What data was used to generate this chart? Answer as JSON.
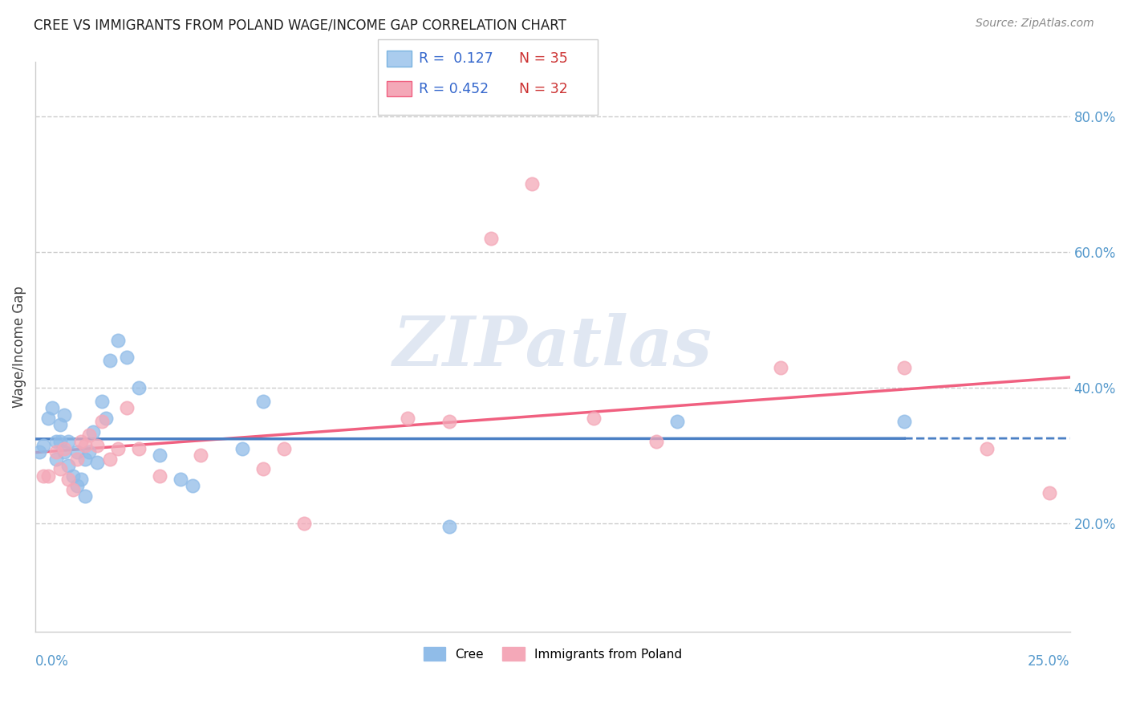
{
  "title": "CREE VS IMMIGRANTS FROM POLAND WAGE/INCOME GAP CORRELATION CHART",
  "source": "Source: ZipAtlas.com",
  "ylabel": "Wage/Income Gap",
  "yticks": [
    0.2,
    0.4,
    0.6,
    0.8
  ],
  "ytick_labels": [
    "20.0%",
    "40.0%",
    "60.0%",
    "80.0%"
  ],
  "xlim": [
    0.0,
    0.25
  ],
  "ylim": [
    0.04,
    0.88
  ],
  "cree_color": "#90bce8",
  "poland_color": "#f4a8b8",
  "cree_line_color": "#4a7fc4",
  "poland_line_color": "#f06080",
  "background_color": "#ffffff",
  "grid_color": "#cccccc",
  "watermark": "ZIPatlas",
  "legend_R_color": "#3366cc",
  "legend_N_color": "#cc3333",
  "tick_color": "#5599cc",
  "cree_x": [
    0.001,
    0.002,
    0.003,
    0.004,
    0.005,
    0.005,
    0.006,
    0.006,
    0.007,
    0.007,
    0.008,
    0.008,
    0.009,
    0.01,
    0.01,
    0.011,
    0.012,
    0.012,
    0.013,
    0.014,
    0.015,
    0.016,
    0.017,
    0.018,
    0.02,
    0.022,
    0.025,
    0.03,
    0.035,
    0.038,
    0.05,
    0.055,
    0.1,
    0.155,
    0.21
  ],
  "cree_y": [
    0.305,
    0.315,
    0.355,
    0.37,
    0.32,
    0.295,
    0.345,
    0.32,
    0.36,
    0.305,
    0.32,
    0.285,
    0.27,
    0.305,
    0.255,
    0.265,
    0.24,
    0.295,
    0.305,
    0.335,
    0.29,
    0.38,
    0.355,
    0.44,
    0.47,
    0.445,
    0.4,
    0.3,
    0.265,
    0.255,
    0.31,
    0.38,
    0.195,
    0.35,
    0.35
  ],
  "poland_x": [
    0.002,
    0.003,
    0.005,
    0.006,
    0.007,
    0.008,
    0.009,
    0.01,
    0.011,
    0.012,
    0.013,
    0.015,
    0.016,
    0.018,
    0.02,
    0.022,
    0.025,
    0.03,
    0.04,
    0.055,
    0.06,
    0.065,
    0.09,
    0.1,
    0.11,
    0.12,
    0.135,
    0.15,
    0.18,
    0.21,
    0.23,
    0.245
  ],
  "poland_y": [
    0.27,
    0.27,
    0.305,
    0.28,
    0.31,
    0.265,
    0.25,
    0.295,
    0.32,
    0.315,
    0.33,
    0.315,
    0.35,
    0.295,
    0.31,
    0.37,
    0.31,
    0.27,
    0.3,
    0.28,
    0.31,
    0.2,
    0.355,
    0.35,
    0.62,
    0.7,
    0.355,
    0.32,
    0.43,
    0.43,
    0.31,
    0.245
  ]
}
